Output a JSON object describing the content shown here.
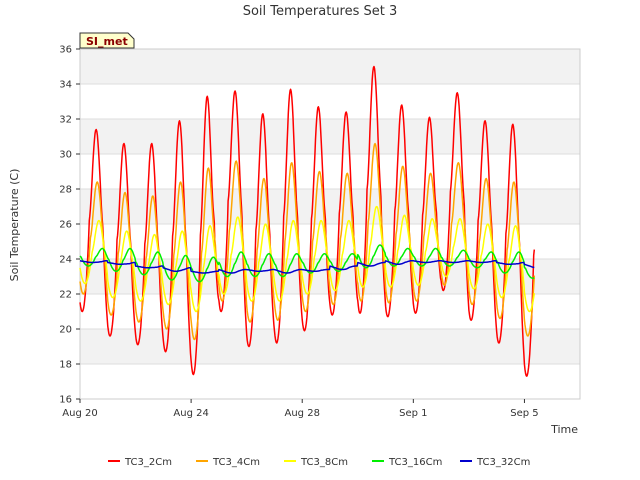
{
  "chart_data": {
    "type": "line",
    "title": "Soil Temperatures Set 3",
    "xlabel": "Time",
    "ylabel": "Soil Temperature (C)",
    "site_badge": "SI_met",
    "ylim": [
      16,
      36
    ],
    "y_ticks": [
      16,
      18,
      20,
      22,
      24,
      26,
      28,
      30,
      32,
      34,
      36
    ],
    "x_ticks": [
      {
        "label": "Aug 20",
        "day": 0
      },
      {
        "label": "Aug 24",
        "day": 4
      },
      {
        "label": "Aug 28",
        "day": 8
      },
      {
        "label": "Sep 1",
        "day": 12
      },
      {
        "label": "Sep 5",
        "day": 16
      }
    ],
    "xlim_days": [
      0,
      18
    ],
    "grid": true,
    "legend_position": "bottom",
    "daily_minmax": [
      {
        "date": "Aug 20",
        "TC3_2Cm": [
          21.0,
          31.4
        ],
        "TC3_4Cm": [
          22.0,
          28.4
        ],
        "TC3_8Cm": [
          22.6,
          26.2
        ],
        "TC3_16Cm": [
          23.6,
          24.6
        ],
        "TC3_32Cm": [
          23.8,
          23.9
        ]
      },
      {
        "date": "Aug 21",
        "TC3_2Cm": [
          19.6,
          30.6
        ],
        "TC3_4Cm": [
          20.8,
          27.8
        ],
        "TC3_8Cm": [
          21.8,
          25.6
        ],
        "TC3_16Cm": [
          23.3,
          24.6
        ],
        "TC3_32Cm": [
          23.7,
          23.8
        ]
      },
      {
        "date": "Aug 22",
        "TC3_2Cm": [
          19.1,
          30.6
        ],
        "TC3_4Cm": [
          20.4,
          27.6
        ],
        "TC3_8Cm": [
          21.6,
          25.4
        ],
        "TC3_16Cm": [
          23.1,
          24.4
        ],
        "TC3_32Cm": [
          23.5,
          23.6
        ]
      },
      {
        "date": "Aug 23",
        "TC3_2Cm": [
          18.7,
          31.9
        ],
        "TC3_4Cm": [
          20.0,
          28.4
        ],
        "TC3_8Cm": [
          21.4,
          25.6
        ],
        "TC3_16Cm": [
          22.8,
          24.2
        ],
        "TC3_32Cm": [
          23.3,
          23.5
        ]
      },
      {
        "date": "Aug 24",
        "TC3_2Cm": [
          17.4,
          33.3
        ],
        "TC3_4Cm": [
          19.4,
          29.2
        ],
        "TC3_8Cm": [
          21.0,
          25.9
        ],
        "TC3_16Cm": [
          22.7,
          24.1
        ],
        "TC3_32Cm": [
          23.2,
          23.3
        ]
      },
      {
        "date": "Aug 25",
        "TC3_2Cm": [
          21.0,
          33.6
        ],
        "TC3_4Cm": [
          21.6,
          29.6
        ],
        "TC3_8Cm": [
          22.0,
          26.4
        ],
        "TC3_16Cm": [
          23.0,
          24.4
        ],
        "TC3_32Cm": [
          23.2,
          23.4
        ]
      },
      {
        "date": "Aug 26",
        "TC3_2Cm": [
          19.0,
          32.3
        ],
        "TC3_4Cm": [
          20.4,
          28.6
        ],
        "TC3_8Cm": [
          21.6,
          26.0
        ],
        "TC3_16Cm": [
          23.0,
          24.3
        ],
        "TC3_32Cm": [
          23.3,
          23.4
        ]
      },
      {
        "date": "Aug 27",
        "TC3_2Cm": [
          19.2,
          33.7
        ],
        "TC3_4Cm": [
          20.5,
          29.5
        ],
        "TC3_8Cm": [
          21.6,
          26.2
        ],
        "TC3_16Cm": [
          23.0,
          24.3
        ],
        "TC3_32Cm": [
          23.2,
          23.4
        ]
      },
      {
        "date": "Aug 28",
        "TC3_2Cm": [
          19.9,
          32.7
        ],
        "TC3_4Cm": [
          21.0,
          29.0
        ],
        "TC3_8Cm": [
          22.0,
          26.2
        ],
        "TC3_16Cm": [
          23.2,
          24.3
        ],
        "TC3_32Cm": [
          23.3,
          23.4
        ]
      },
      {
        "date": "Aug 29",
        "TC3_2Cm": [
          20.8,
          32.4
        ],
        "TC3_4Cm": [
          21.4,
          28.9
        ],
        "TC3_8Cm": [
          22.2,
          26.2
        ],
        "TC3_16Cm": [
          23.3,
          24.3
        ],
        "TC3_32Cm": [
          23.4,
          23.6
        ]
      },
      {
        "date": "Aug 30",
        "TC3_2Cm": [
          20.9,
          35.0
        ],
        "TC3_4Cm": [
          21.6,
          30.6
        ],
        "TC3_8Cm": [
          22.4,
          27.0
        ],
        "TC3_16Cm": [
          23.5,
          24.8
        ],
        "TC3_32Cm": [
          23.6,
          23.8
        ]
      },
      {
        "date": "Aug 31",
        "TC3_2Cm": [
          20.7,
          32.8
        ],
        "TC3_4Cm": [
          21.5,
          29.3
        ],
        "TC3_8Cm": [
          22.4,
          26.5
        ],
        "TC3_16Cm": [
          23.6,
          24.6
        ],
        "TC3_32Cm": [
          23.7,
          23.9
        ]
      },
      {
        "date": "Sep 1",
        "TC3_2Cm": [
          20.9,
          32.1
        ],
        "TC3_4Cm": [
          21.6,
          28.9
        ],
        "TC3_8Cm": [
          22.5,
          26.3
        ],
        "TC3_16Cm": [
          23.6,
          24.6
        ],
        "TC3_32Cm": [
          23.8,
          23.9
        ]
      },
      {
        "date": "Sep 2",
        "TC3_2Cm": [
          22.2,
          33.5
        ],
        "TC3_4Cm": [
          22.5,
          29.5
        ],
        "TC3_8Cm": [
          23.0,
          26.3
        ],
        "TC3_16Cm": [
          23.6,
          24.5
        ],
        "TC3_32Cm": [
          23.8,
          23.9
        ]
      },
      {
        "date": "Sep 3",
        "TC3_2Cm": [
          20.5,
          31.9
        ],
        "TC3_4Cm": [
          21.4,
          28.6
        ],
        "TC3_8Cm": [
          22.3,
          26.0
        ],
        "TC3_16Cm": [
          23.5,
          24.4
        ],
        "TC3_32Cm": [
          23.8,
          23.9
        ]
      },
      {
        "date": "Sep 4",
        "TC3_2Cm": [
          19.2,
          31.7
        ],
        "TC3_4Cm": [
          20.6,
          28.4
        ],
        "TC3_8Cm": [
          21.8,
          25.9
        ],
        "TC3_16Cm": [
          23.2,
          24.4
        ],
        "TC3_32Cm": [
          23.7,
          23.8
        ]
      },
      {
        "date": "Sep 5",
        "TC3_2Cm": [
          17.3,
          31.1
        ],
        "TC3_4Cm": [
          19.6,
          27.8
        ],
        "TC3_8Cm": [
          21.0,
          25.5
        ],
        "TC3_16Cm": [
          22.9,
          24.0
        ],
        "TC3_32Cm": [
          23.5,
          23.7
        ]
      }
    ],
    "series": [
      {
        "name": "TC3_2Cm",
        "color": "#ff0000",
        "peak_phase": 0.58
      },
      {
        "name": "TC3_4Cm",
        "color": "#ffa500",
        "peak_phase": 0.62
      },
      {
        "name": "TC3_8Cm",
        "color": "#ffff00",
        "peak_phase": 0.68
      },
      {
        "name": "TC3_16Cm",
        "color": "#00ee00",
        "peak_phase": 0.8
      },
      {
        "name": "TC3_32Cm",
        "color": "#0000cd",
        "peak_phase": 0.95
      }
    ]
  }
}
